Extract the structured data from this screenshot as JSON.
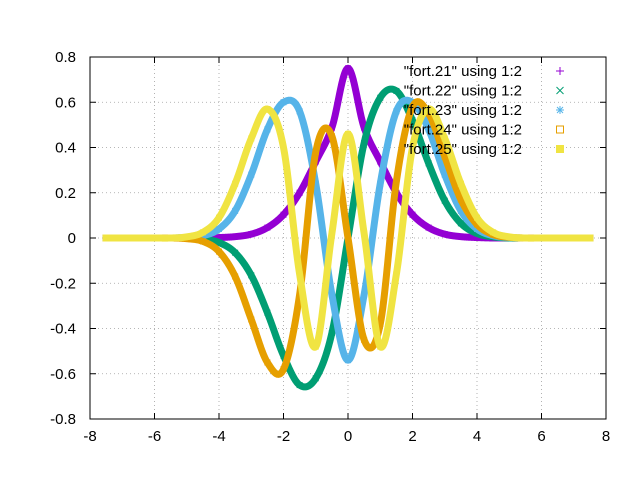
{
  "chart_data": {
    "type": "scatter",
    "title": "",
    "xlabel": "",
    "ylabel": "",
    "xlim": [
      -8,
      8
    ],
    "ylim": [
      -0.8,
      0.8
    ],
    "x_ticks": [
      "-8",
      "-6",
      "-4",
      "-2",
      "0",
      "2",
      "4",
      "6",
      "8"
    ],
    "y_ticks": [
      "0.8",
      "0.6",
      "0.4",
      "0.2",
      "0",
      "-0.2",
      "-0.4",
      "-0.6",
      "-0.8"
    ],
    "grid": true,
    "legend_position": "top-right",
    "series": [
      {
        "name": "\"fort.21\" using 1:2",
        "marker": "plus",
        "color": "#9400d3",
        "x": [
          -7.5,
          -7.0,
          -6.5,
          -6.0,
          -5.5,
          -5.0,
          -4.5,
          -4.0,
          -3.5,
          -3.0,
          -2.5,
          -2.0,
          -1.5,
          -1.0,
          -0.5,
          0.0,
          0.5,
          1.0,
          1.5,
          2.0,
          2.5,
          3.0,
          3.5,
          4.0,
          4.5,
          5.0,
          5.5,
          6.0,
          6.5,
          7.0,
          7.5
        ],
        "y": [
          0.0,
          0.0,
          0.0,
          0.0,
          0.0,
          0.0,
          0.0,
          0.002,
          0.006,
          0.017,
          0.046,
          0.103,
          0.2,
          0.338,
          0.488,
          0.75,
          0.488,
          0.338,
          0.2,
          0.103,
          0.046,
          0.017,
          0.006,
          0.002,
          0.0,
          0.0,
          0.0,
          0.0,
          0.0,
          0.0,
          0.0
        ]
      },
      {
        "name": "\"fort.22\" using 1:2",
        "marker": "x",
        "color": "#009e73",
        "x": [
          -7.5,
          -7.0,
          -6.5,
          -6.0,
          -5.5,
          -5.0,
          -4.5,
          -4.0,
          -3.5,
          -3.0,
          -2.5,
          -2.0,
          -1.5,
          -1.0,
          -0.5,
          0.0,
          0.5,
          1.0,
          1.5,
          2.0,
          2.5,
          3.0,
          3.5,
          4.0,
          4.5,
          5.0,
          5.5,
          6.0,
          6.5,
          7.0,
          7.5
        ],
        "y": [
          0.0,
          0.0,
          0.0,
          0.0,
          0.0,
          0.0,
          -0.005,
          -0.02,
          -0.065,
          -0.165,
          -0.33,
          -0.52,
          -0.65,
          -0.62,
          -0.42,
          0.0,
          0.42,
          0.62,
          0.65,
          0.52,
          0.33,
          0.165,
          0.065,
          0.02,
          0.005,
          0.0,
          0.0,
          0.0,
          0.0,
          0.0,
          0.0
        ]
      },
      {
        "name": "\"fort.23\" using 1:2",
        "marker": "star",
        "color": "#56b4e9",
        "x": [
          -7.5,
          -7.0,
          -6.5,
          -6.0,
          -5.5,
          -5.0,
          -4.5,
          -4.0,
          -3.5,
          -3.0,
          -2.5,
          -2.0,
          -1.5,
          -1.0,
          -0.5,
          0.0,
          0.5,
          1.0,
          1.5,
          2.0,
          2.5,
          3.0,
          3.5,
          4.0,
          4.5,
          5.0,
          5.5,
          6.0,
          6.5,
          7.0,
          7.5
        ],
        "y": [
          0.0,
          0.0,
          0.0,
          0.0,
          0.0,
          0.002,
          0.01,
          0.04,
          0.12,
          0.28,
          0.48,
          0.6,
          0.56,
          0.24,
          -0.25,
          -0.54,
          -0.25,
          0.24,
          0.56,
          0.6,
          0.48,
          0.28,
          0.12,
          0.04,
          0.01,
          0.002,
          0.0,
          0.0,
          0.0,
          0.0,
          0.0
        ]
      },
      {
        "name": "\"fort.24\" using 1:2",
        "marker": "open-square",
        "color": "#e69f00",
        "x": [
          -7.5,
          -7.0,
          -6.5,
          -6.0,
          -5.5,
          -5.0,
          -4.5,
          -4.0,
          -3.5,
          -3.0,
          -2.5,
          -2.0,
          -1.5,
          -1.0,
          -0.5,
          0.0,
          0.5,
          1.0,
          1.5,
          2.0,
          2.5,
          3.0,
          3.5,
          4.0,
          4.5,
          5.0,
          5.5,
          6.0,
          6.5,
          7.0,
          7.5
        ],
        "y": [
          0.0,
          0.0,
          0.0,
          0.0,
          0.0,
          -0.003,
          -0.015,
          -0.06,
          -0.17,
          -0.36,
          -0.55,
          -0.58,
          -0.25,
          0.38,
          0.45,
          0.0,
          -0.45,
          -0.38,
          0.25,
          0.58,
          0.55,
          0.36,
          0.17,
          0.06,
          0.015,
          0.003,
          0.0,
          0.0,
          0.0,
          0.0,
          0.0
        ]
      },
      {
        "name": "\"fort.25\" using 1:2",
        "marker": "filled-square",
        "color": "#f0e442",
        "x": [
          -7.5,
          -7.0,
          -6.5,
          -6.0,
          -5.5,
          -5.0,
          -4.5,
          -4.0,
          -3.5,
          -3.0,
          -2.5,
          -2.0,
          -1.5,
          -1.0,
          -0.5,
          0.0,
          0.5,
          1.0,
          1.5,
          2.0,
          2.5,
          3.0,
          3.5,
          4.0,
          4.5,
          5.0,
          5.5,
          6.0,
          6.5,
          7.0,
          7.5
        ],
        "y": [
          0.0,
          0.0,
          0.0,
          0.0,
          0.0,
          0.005,
          0.025,
          0.09,
          0.24,
          0.44,
          0.57,
          0.4,
          -0.16,
          -0.48,
          0.02,
          0.46,
          0.02,
          -0.48,
          -0.16,
          0.4,
          0.57,
          0.44,
          0.24,
          0.09,
          0.025,
          0.005,
          0.0,
          0.0,
          0.0,
          0.0,
          0.0
        ]
      }
    ]
  }
}
